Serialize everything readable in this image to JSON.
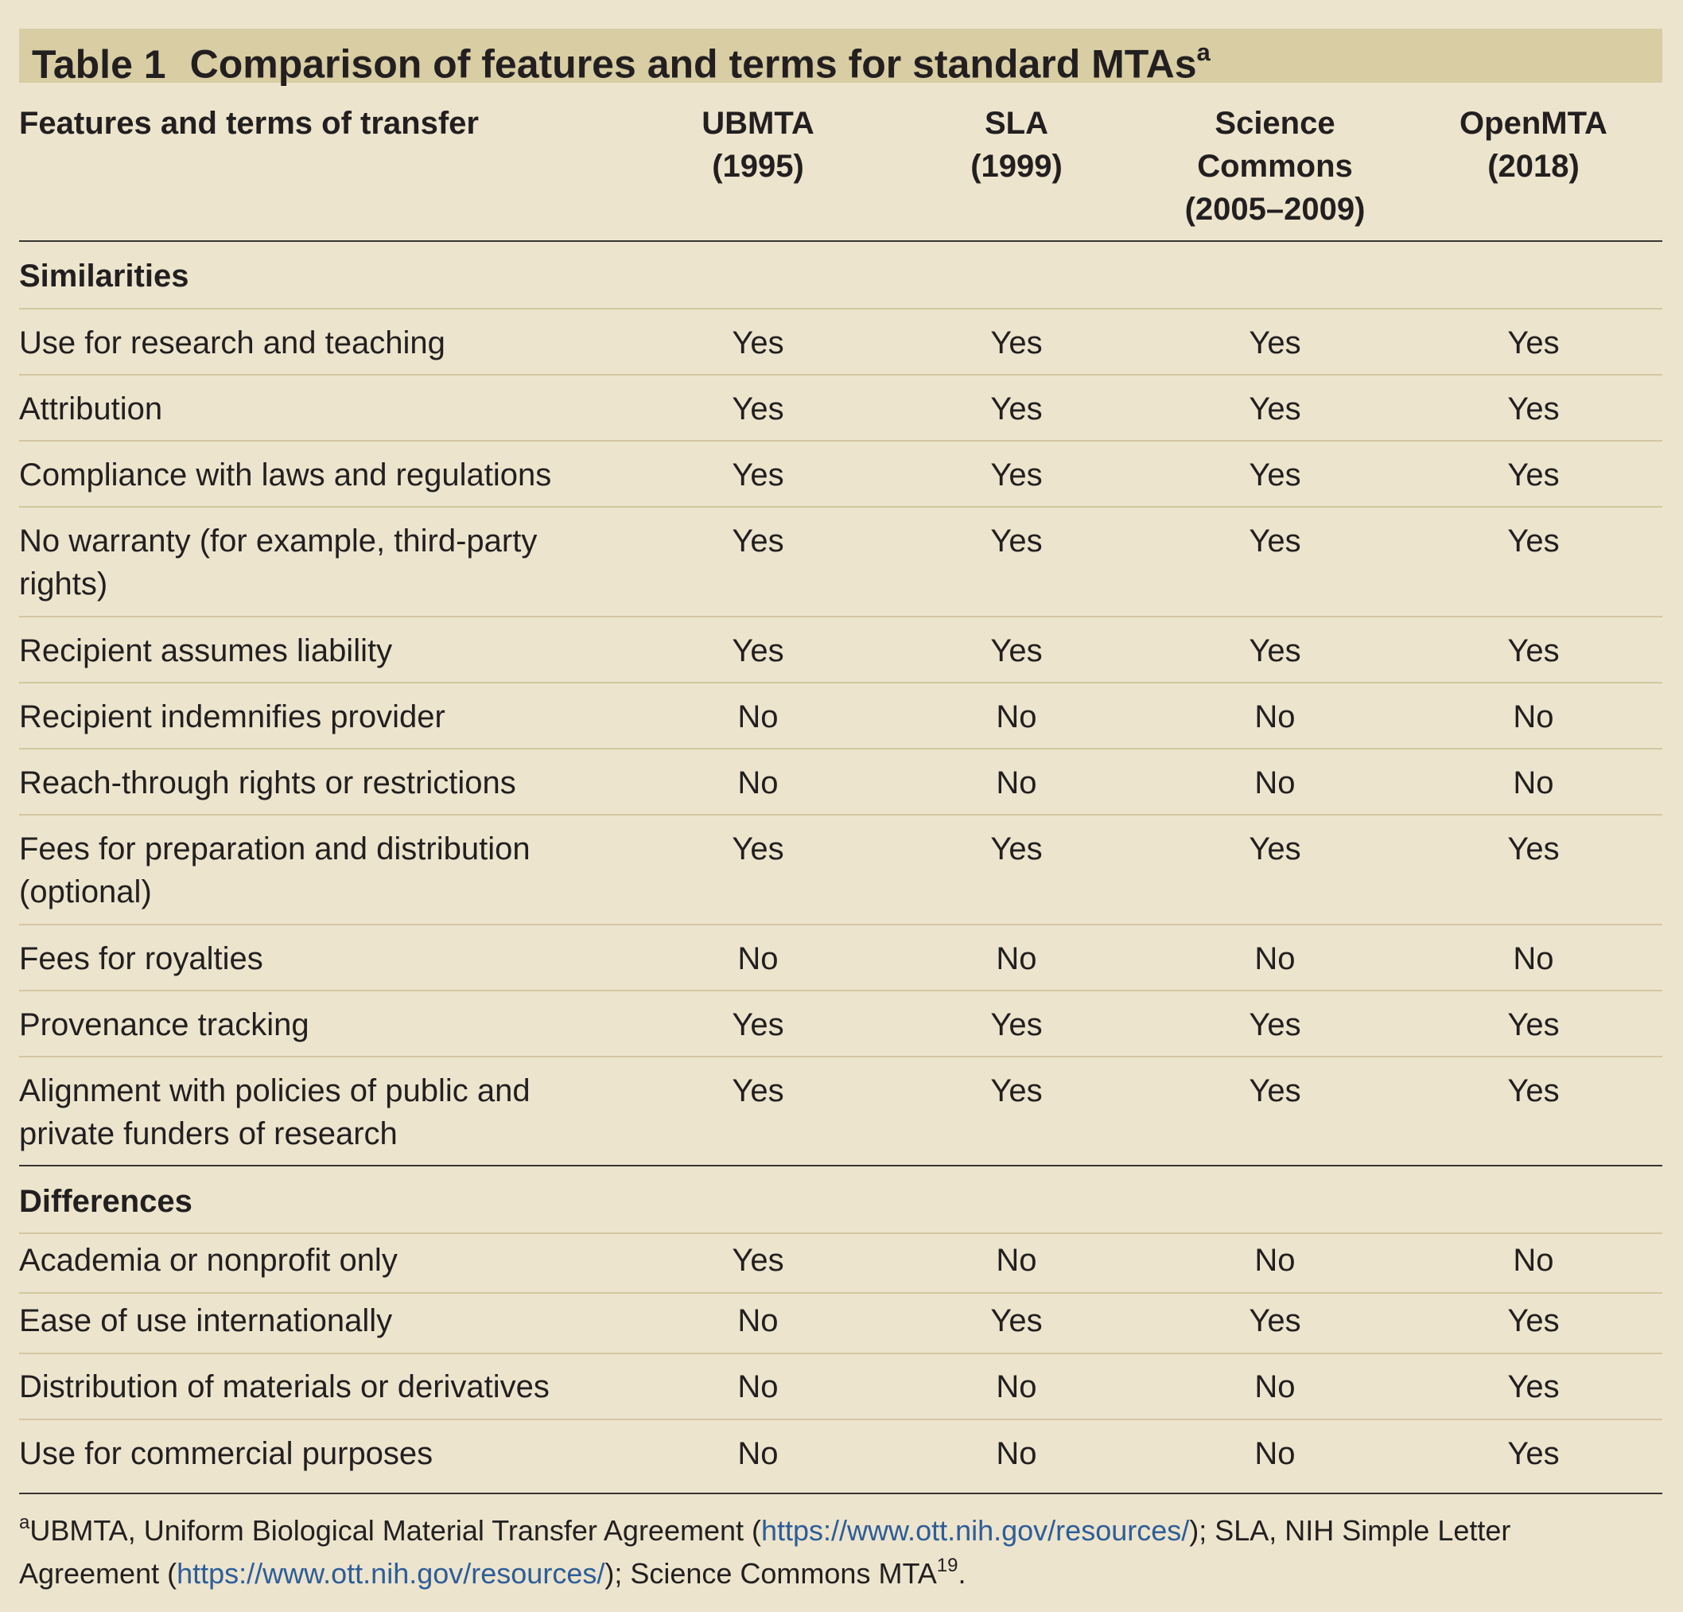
{
  "title": {
    "number": "Table 1",
    "text": "Comparison of features and terms for standard MTAs",
    "sup": "a"
  },
  "header": {
    "feature_col": "Features and terms of transfer",
    "columns": [
      {
        "line1": "UBMTA",
        "line2": "(1995)",
        "line3": ""
      },
      {
        "line1": "SLA",
        "line2": "(1999)",
        "line3": ""
      },
      {
        "line1": "Science",
        "line2": "Commons",
        "line3": "(2005–2009)"
      },
      {
        "line1": "OpenMTA",
        "line2": "(2018)",
        "line3": ""
      }
    ]
  },
  "sections": [
    {
      "label": "Similarities",
      "rows": [
        {
          "line1": "Use for research and teaching",
          "line2": "",
          "values": [
            "Yes",
            "Yes",
            "Yes",
            "Yes"
          ]
        },
        {
          "line1": "Attribution",
          "line2": "",
          "values": [
            "Yes",
            "Yes",
            "Yes",
            "Yes"
          ]
        },
        {
          "line1": "Compliance with laws and regulations",
          "line2": "",
          "values": [
            "Yes",
            "Yes",
            "Yes",
            "Yes"
          ]
        },
        {
          "line1": "No warranty (for example, third-party",
          "line2": "rights)",
          "values": [
            "Yes",
            "Yes",
            "Yes",
            "Yes"
          ]
        },
        {
          "line1": "Recipient assumes liability",
          "line2": "",
          "values": [
            "Yes",
            "Yes",
            "Yes",
            "Yes"
          ]
        },
        {
          "line1": "Recipient indemnifies provider",
          "line2": "",
          "values": [
            "No",
            "No",
            "No",
            "No"
          ]
        },
        {
          "line1": "Reach-through rights or restrictions",
          "line2": "",
          "values": [
            "No",
            "No",
            "No",
            "No"
          ]
        },
        {
          "line1": "Fees for preparation and distribution",
          "line2": "(optional)",
          "values": [
            "Yes",
            "Yes",
            "Yes",
            "Yes"
          ]
        },
        {
          "line1": "Fees for royalties",
          "line2": "",
          "values": [
            "No",
            "No",
            "No",
            "No"
          ]
        },
        {
          "line1": "Provenance tracking",
          "line2": "",
          "values": [
            "Yes",
            "Yes",
            "Yes",
            "Yes"
          ]
        },
        {
          "line1": "Alignment with policies of public and",
          "line2": "private funders of research",
          "values": [
            "Yes",
            "Yes",
            "Yes",
            "Yes"
          ]
        }
      ]
    },
    {
      "label": "Differences",
      "rows": [
        {
          "line1": "Academia or nonprofit only",
          "line2": "",
          "values": [
            "Yes",
            "No",
            "No",
            "No"
          ]
        },
        {
          "line1": "Ease of use internationally",
          "line2": "",
          "values": [
            "No",
            "Yes",
            "Yes",
            "Yes"
          ]
        },
        {
          "line1": "Distribution of materials or derivatives",
          "line2": "",
          "values": [
            "No",
            "No",
            "No",
            "Yes"
          ]
        },
        {
          "line1": "Use for commercial purposes",
          "line2": "",
          "values": [
            "No",
            "No",
            "No",
            "Yes"
          ]
        }
      ]
    }
  ],
  "footnote": {
    "marker": "a",
    "part1": "UBMTA, Uniform Biological Material Transfer Agreement (",
    "link1": "https://www.ott.nih.gov/resources/",
    "part2": "); SLA, NIH Simple Letter",
    "part3": "Agreement (",
    "link2": "https://www.ott.nih.gov/resources/",
    "part4": "); Science Commons MTA",
    "ref": "19",
    "part5": "."
  },
  "colors": {
    "background": "#ece4cd",
    "title_band": "#d8cda3",
    "rule": "#3a3532",
    "thin_rule": "#d3c7a2",
    "link": "#2d5d99"
  }
}
